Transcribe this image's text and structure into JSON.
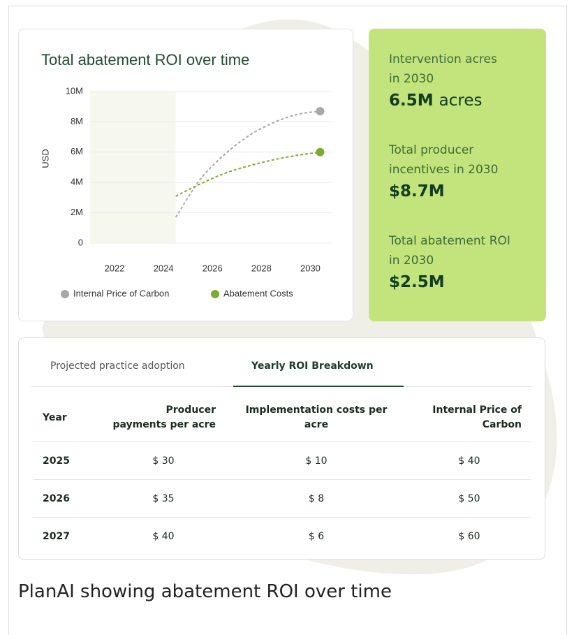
{
  "chart_data": {
    "type": "line",
    "title": "Total abatement ROI over time",
    "y_label": "USD",
    "xlim": [
      2021,
      2030.9
    ],
    "xticks": [
      2022,
      2024,
      2026,
      2028,
      2030
    ],
    "ylim": [
      0,
      10000000
    ],
    "yticks": [
      {
        "value": 0,
        "label": "0"
      },
      {
        "value": 2000000,
        "label": "2M"
      },
      {
        "value": 4000000,
        "label": "4M"
      },
      {
        "value": 6000000,
        "label": "6M"
      },
      {
        "value": 8000000,
        "label": "8M"
      },
      {
        "value": 10000000,
        "label": "10M"
      }
    ],
    "shaded_xrange": [
      2021,
      2024.5
    ],
    "grid": true,
    "x": [
      2024.5,
      2025.5,
      2026.5,
      2027.5,
      2028.5,
      2029.5,
      2030.4
    ],
    "series": [
      {
        "name": "Internal Price of Carbon",
        "color": "#a8a8a8",
        "values": [
          1700000,
          4200000,
          5850000,
          7100000,
          7950000,
          8500000,
          8700000
        ]
      },
      {
        "name": "Abatement Costs",
        "color": "#7aac2e",
        "values": [
          3100000,
          3900000,
          4600000,
          5100000,
          5500000,
          5800000,
          6000000
        ]
      }
    ]
  },
  "metrics": [
    {
      "label": "Intervention acres in 2030",
      "value": "6.5M",
      "unit": "acres"
    },
    {
      "label": "Total producer incentives in 2030",
      "value": "$8.7M"
    },
    {
      "label": "Total abatement ROI in 2030",
      "value": "$2.5M"
    }
  ],
  "tabs": [
    "Projected practice adoption",
    "Yearly ROI Breakdown"
  ],
  "table": {
    "headers": [
      "Year",
      "Producer payments per acre",
      "Implementation costs per acre",
      "Internal Price of Carbon"
    ],
    "rows": [
      [
        "2025",
        "$ 30",
        "$ 10",
        "$ 40"
      ],
      [
        "2026",
        "$ 35",
        "$ 8",
        "$ 50"
      ],
      [
        "2027",
        "$ 40",
        "$ 6",
        "$ 60"
      ]
    ]
  },
  "caption": "PlanAI showing abatement ROI over time"
}
